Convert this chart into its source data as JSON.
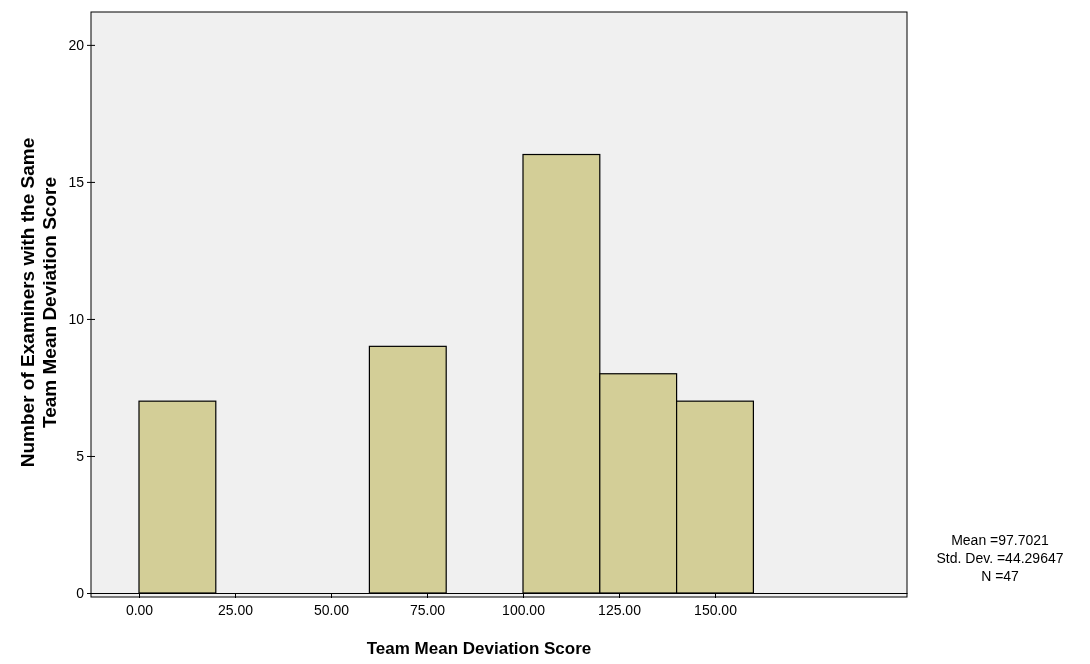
{
  "chart_data": {
    "type": "histogram",
    "xlabel": "Team Mean Deviation Score",
    "ylabel": "Number of Examiners with the Same Team Mean Deviation Score",
    "bins": [
      0,
      20,
      40,
      60,
      80,
      100,
      120,
      140,
      160
    ],
    "values": [
      7,
      0,
      0,
      9,
      0,
      16,
      8,
      7
    ],
    "color": "#d3ce97",
    "xlim": [
      -12.5,
      200
    ],
    "xticks": [
      {
        "value": 0,
        "label": "0.00"
      },
      {
        "value": 25,
        "label": "25.00"
      },
      {
        "value": 50,
        "label": "50.00"
      },
      {
        "value": 75,
        "label": "75.00"
      },
      {
        "value": 100,
        "label": "100.00"
      },
      {
        "value": 125,
        "label": "125.00"
      },
      {
        "value": 150,
        "label": "150.00"
      }
    ],
    "ylim": [
      0,
      21.2
    ],
    "yticks": [
      0,
      5,
      10,
      15,
      20
    ],
    "grid": false,
    "annotations": [
      "Mean =97.7021",
      "Std. Dev. =44.29647",
      "N =47"
    ]
  }
}
